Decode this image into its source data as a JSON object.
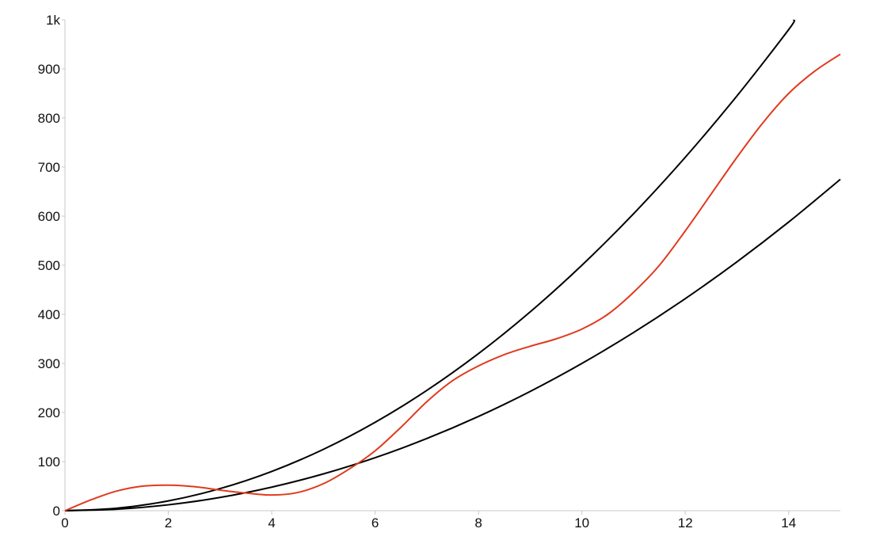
{
  "chart_data": {
    "type": "line",
    "title": "",
    "xlabel": "",
    "ylabel": "",
    "xlim": [
      0,
      15
    ],
    "ylim": [
      0,
      1000
    ],
    "grid": false,
    "legend": "none",
    "x_ticks": [
      {
        "value": 0,
        "label": "0"
      },
      {
        "value": 2,
        "label": "2"
      },
      {
        "value": 4,
        "label": "4"
      },
      {
        "value": 6,
        "label": "6"
      },
      {
        "value": 8,
        "label": "8"
      },
      {
        "value": 10,
        "label": "10"
      },
      {
        "value": 12,
        "label": "12"
      },
      {
        "value": 14,
        "label": "14"
      }
    ],
    "y_ticks": [
      {
        "value": 0,
        "label": "0"
      },
      {
        "value": 100,
        "label": "100"
      },
      {
        "value": 200,
        "label": "200"
      },
      {
        "value": 300,
        "label": "300"
      },
      {
        "value": 400,
        "label": "400"
      },
      {
        "value": 500,
        "label": "500"
      },
      {
        "value": 600,
        "label": "600"
      },
      {
        "value": 700,
        "label": "700"
      },
      {
        "value": 800,
        "label": "800"
      },
      {
        "value": 900,
        "label": "900"
      },
      {
        "value": 1000,
        "label": "1k"
      }
    ],
    "series": [
      {
        "color": "#000000",
        "x": [
          0,
          1,
          2,
          3,
          4,
          5,
          6,
          7,
          8,
          9,
          10,
          11,
          12,
          13,
          14,
          14.1
        ],
        "y": [
          0,
          5,
          20,
          45,
          80,
          125,
          180,
          245,
          320,
          405,
          500,
          605,
          720,
          845,
          980,
          1000
        ]
      },
      {
        "color": "#000000",
        "x": [
          0,
          1,
          2,
          3,
          4,
          5,
          6,
          7,
          8,
          9,
          10,
          11,
          12,
          13,
          14,
          15
        ],
        "y": [
          0,
          3,
          12,
          27,
          48,
          75,
          108,
          147,
          192,
          243,
          300,
          363,
          432,
          507,
          588,
          675
        ]
      },
      {
        "color": "#e03a1e",
        "x": [
          0,
          0.5,
          1,
          1.5,
          2,
          2.5,
          3,
          3.5,
          4,
          4.5,
          5,
          5.5,
          6,
          6.5,
          7,
          7.5,
          8,
          8.5,
          9,
          9.5,
          10,
          10.5,
          11,
          11.5,
          12,
          12.5,
          13,
          13.5,
          14,
          14.5,
          15
        ],
        "y": [
          0,
          22,
          40,
          50,
          52,
          49,
          42,
          36,
          32,
          37,
          55,
          85,
          122,
          170,
          222,
          265,
          295,
          318,
          335,
          350,
          370,
          400,
          445,
          500,
          570,
          645,
          720,
          790,
          850,
          895,
          930
        ]
      }
    ]
  }
}
